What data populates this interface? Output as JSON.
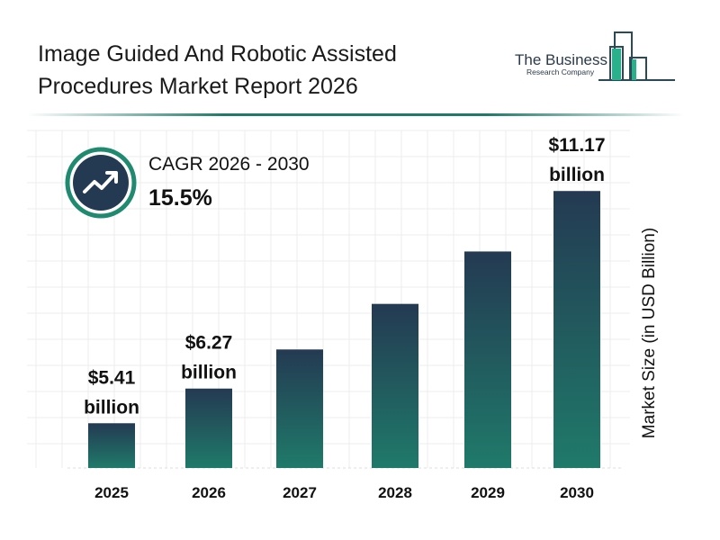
{
  "title": "Image Guided And Robotic Assisted Procedures Market Report 2026",
  "logo": {
    "line1": "The Business",
    "line2": "Research Company"
  },
  "cagr": {
    "label": "CAGR 2026 - 2030",
    "value": "15.5%",
    "icon": "trend-up-arrow-icon"
  },
  "colors": {
    "bar_top": "#243a52",
    "bar_bottom": "#1f7a6a",
    "accent": "#1f8a70"
  },
  "chart_data": {
    "type": "bar",
    "categories": [
      "2025",
      "2026",
      "2027",
      "2028",
      "2029",
      "2030"
    ],
    "values": [
      5.41,
      6.27,
      7.24,
      8.37,
      9.67,
      11.17
    ],
    "data_labels": [
      {
        "index": 0,
        "amount": "$5.41",
        "unit": "billion"
      },
      {
        "index": 1,
        "amount": "$6.27",
        "unit": "billion"
      },
      {
        "index": 5,
        "amount": "$11.17",
        "unit": "billion"
      }
    ],
    "xlabel": "",
    "ylabel": "Market Size (in USD Billion)",
    "grid": true,
    "legend": "none"
  }
}
